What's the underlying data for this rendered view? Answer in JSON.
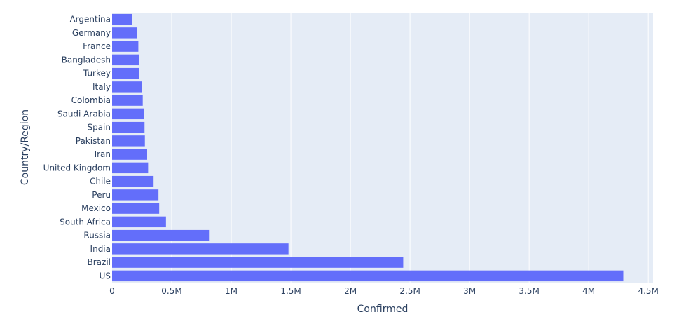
{
  "chart_data": {
    "type": "bar",
    "orientation": "horizontal",
    "categories": [
      "Argentina",
      "Germany",
      "France",
      "Bangladesh",
      "Turkey",
      "Italy",
      "Colombia",
      "Saudi Arabia",
      "Spain",
      "Pakistan",
      "Iran",
      "United Kingdom",
      "Chile",
      "Peru",
      "Mexico",
      "South Africa",
      "Russia",
      "India",
      "Brazil",
      "US"
    ],
    "values": [
      167000,
      207000,
      220000,
      227000,
      227000,
      247000,
      257000,
      270000,
      272000,
      275000,
      294000,
      302000,
      348000,
      389000,
      395000,
      452000,
      813000,
      1480000,
      2443000,
      4290000
    ],
    "xlabel": "Confirmed",
    "ylabel": "Country/Region",
    "xlim": [
      0,
      4540000
    ],
    "xticks": [
      0,
      500000,
      1000000,
      1500000,
      2000000,
      2500000,
      3000000,
      3500000,
      4000000,
      4500000
    ],
    "xtick_labels": [
      "0",
      "0.5M",
      "1M",
      "1.5M",
      "2M",
      "2.5M",
      "3M",
      "3.5M",
      "4M",
      "4.5M"
    ],
    "grid": true,
    "bar_color": "#636efa",
    "plot_bg": "#e5ecf6"
  }
}
